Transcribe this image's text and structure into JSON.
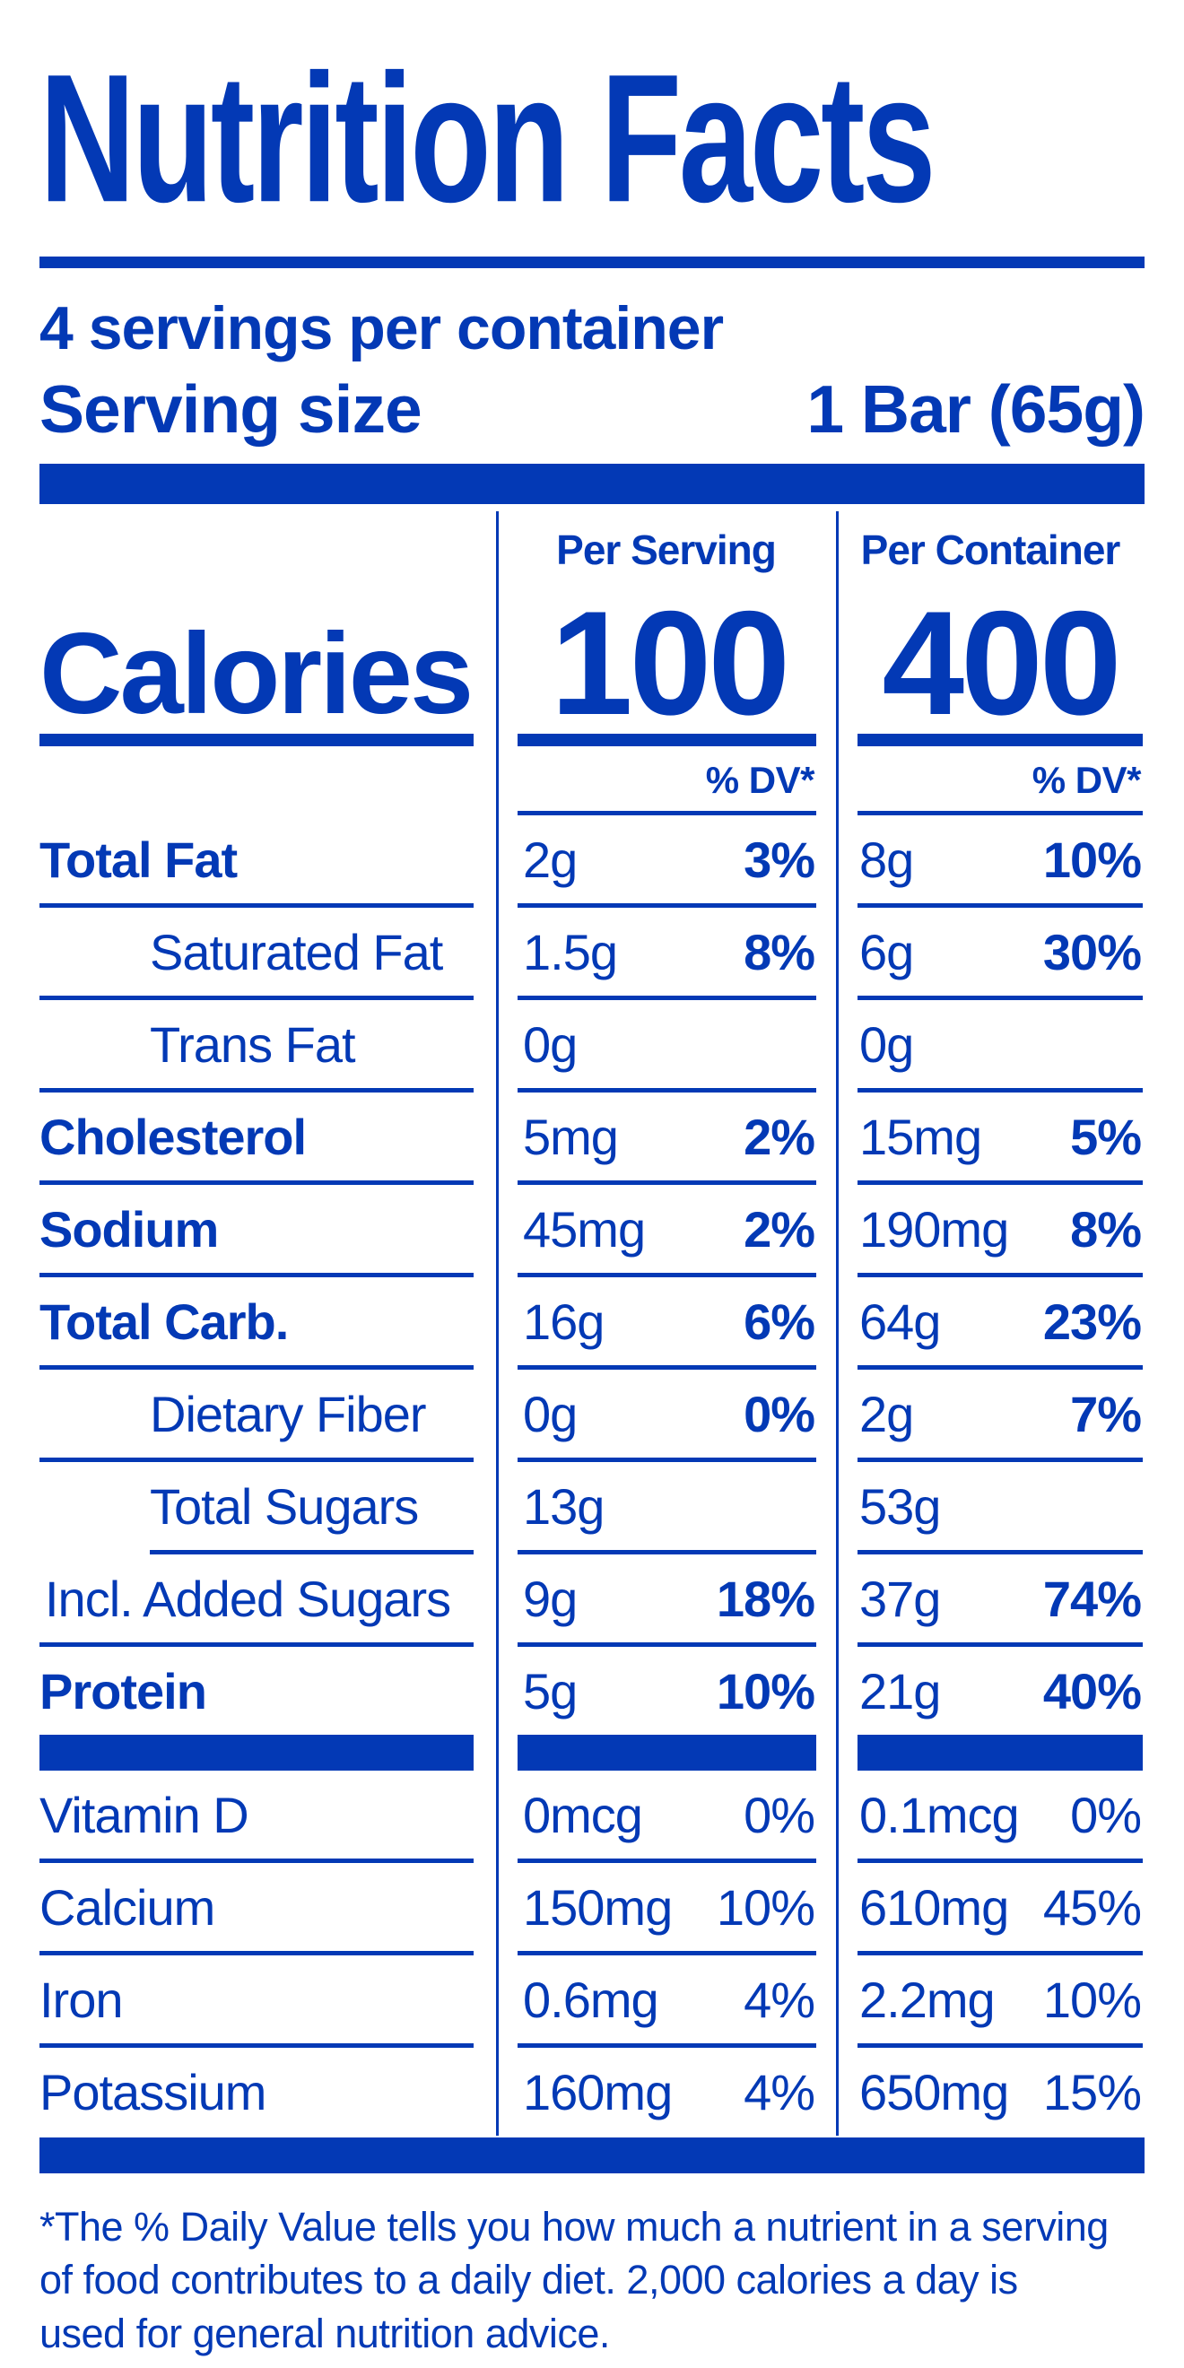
{
  "label": {
    "title": "Nutrition Facts",
    "servings_per_container": "4 servings per container",
    "serving_size_label": "Serving size",
    "serving_size_value": "1 Bar (65g)",
    "columns": {
      "serving": "Per Serving",
      "container": "Per Container"
    },
    "calories": {
      "label": "Calories",
      "per_serving": "100",
      "per_container": "400"
    },
    "dv_header": "% DV*",
    "nutrients": [
      {
        "name": "Total Fat",
        "s_amt": "2g",
        "s_dv": "3%",
        "c_amt": "8g",
        "c_dv": "10%"
      },
      {
        "name": "Saturated Fat",
        "s_amt": "1.5g",
        "s_dv": "8%",
        "c_amt": "6g",
        "c_dv": "30%"
      },
      {
        "name": "Trans Fat",
        "s_amt": "0g",
        "s_dv": "",
        "c_amt": "0g",
        "c_dv": ""
      },
      {
        "name": "Cholesterol",
        "s_amt": "5mg",
        "s_dv": "2%",
        "c_amt": "15mg",
        "c_dv": "5%"
      },
      {
        "name": "Sodium",
        "s_amt": "45mg",
        "s_dv": "2%",
        "c_amt": "190mg",
        "c_dv": "8%"
      },
      {
        "name": "Total Carb.",
        "s_amt": "16g",
        "s_dv": "6%",
        "c_amt": "64g",
        "c_dv": "23%"
      },
      {
        "name": "Dietary Fiber",
        "s_amt": "0g",
        "s_dv": "0%",
        "c_amt": "2g",
        "c_dv": "7%"
      },
      {
        "name": "Total Sugars",
        "s_amt": "13g",
        "s_dv": "",
        "c_amt": "53g",
        "c_dv": ""
      },
      {
        "name": "Incl. Added Sugars",
        "s_amt": "9g",
        "s_dv": "18%",
        "c_amt": "37g",
        "c_dv": "74%"
      },
      {
        "name": "Protein",
        "s_amt": "5g",
        "s_dv": "10%",
        "c_amt": "21g",
        "c_dv": "40%"
      }
    ],
    "vitamins": [
      {
        "name": "Vitamin D",
        "s_amt": "0mcg",
        "s_dv": "0%",
        "c_amt": "0.1mcg",
        "c_dv": "0%"
      },
      {
        "name": "Calcium",
        "s_amt": "150mg",
        "s_dv": "10%",
        "c_amt": "610mg",
        "c_dv": "45%"
      },
      {
        "name": "Iron",
        "s_amt": "0.6mg",
        "s_dv": "4%",
        "c_amt": "2.2mg",
        "c_dv": "10%"
      },
      {
        "name": "Potassium",
        "s_amt": "160mg",
        "s_dv": "4%",
        "c_amt": "650mg",
        "c_dv": "15%"
      }
    ],
    "footnote": "*The % Daily Value tells you how much a nutrient in a serving of food contributes to a daily diet. 2,000 calories a day is used for general nutrition advice.",
    "colors": {
      "accent_blue": "#0339b5",
      "background": "#ffffff"
    }
  }
}
